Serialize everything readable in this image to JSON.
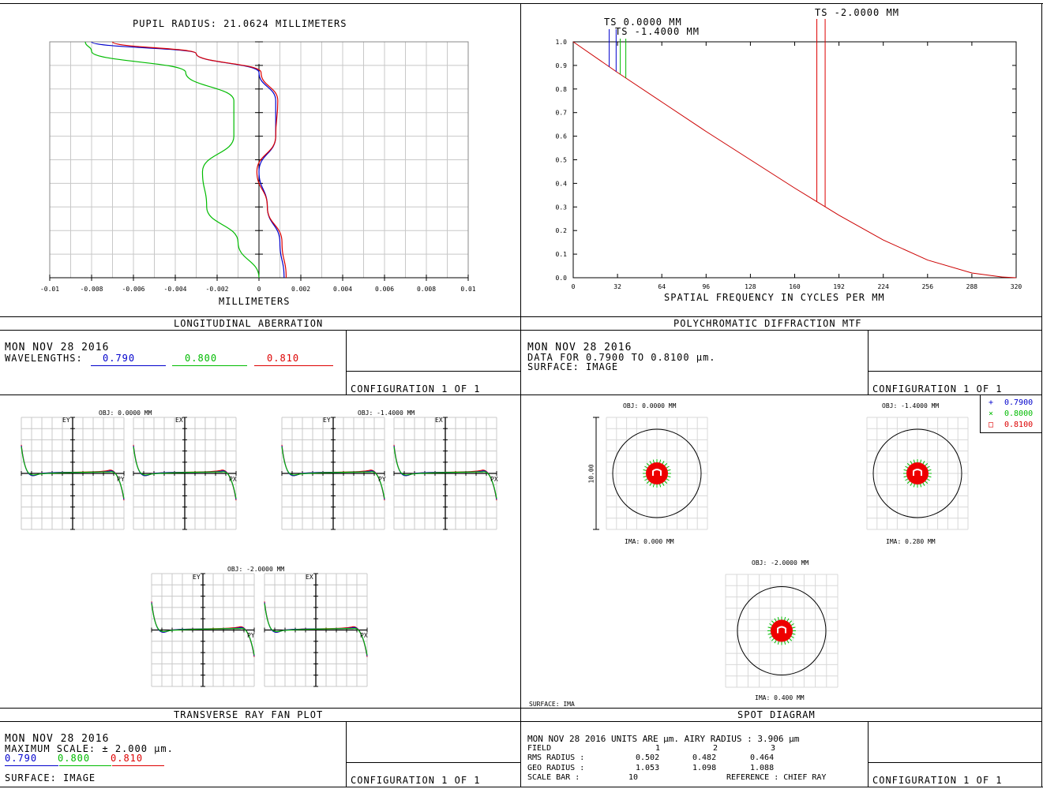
{
  "panels": {
    "lon": {
      "title": "LONGITUDINAL ABERRATION",
      "top_label": "PUPIL RADIUS: 21.0624 MILLIMETERS",
      "xaxis_label": "MILLIMETERS",
      "date": "MON NOV 28 2016",
      "wavelengths_label": "WAVELENGTHS:",
      "wl1": "0.790",
      "wl2": "0.800",
      "wl3": "0.810",
      "config": "CONFIGURATION 1 OF 1"
    },
    "mtf": {
      "title": "POLYCHROMATIC DIFFRACTION MTF",
      "xaxis_label": "SPATIAL FREQUENCY IN CYCLES PER MM",
      "date": "MON NOV 28 2016",
      "data_for": "DATA FOR 0.7900 TO 0.8100 µm.",
      "surface": "SURFACE: IMAGE",
      "config": "CONFIGURATION 1 OF 1",
      "ts1": "TS 0.0000 MM",
      "ts2": "TS -1.4000 MM",
      "ts3": "TS -2.0000 MM"
    },
    "fan": {
      "title": "TRANSVERSE RAY FAN PLOT",
      "obj1": "OBJ: 0.0000 MM",
      "obj2": "OBJ: -1.4000 MM",
      "obj3": "OBJ: -2.0000 MM",
      "ey": "EY",
      "ex": "EX",
      "py": "PY",
      "px": "PX",
      "date": "MON NOV 28 2016",
      "max_scale": "MAXIMUM SCALE: ± 2.000 µm.",
      "wl1": "0.790",
      "wl2": "0.800",
      "wl3": "0.810",
      "surface": "SURFACE: IMAGE",
      "config": "CONFIGURATION 1 OF 1"
    },
    "spot": {
      "title": "SPOT DIAGRAM",
      "obj1": "OBJ: 0.0000 MM",
      "obj2": "OBJ: -1.4000 MM",
      "obj3": "OBJ: -2.0000 MM",
      "ima1": "IMA: 0.000 MM",
      "ima2": "IMA: 0.280 MM",
      "ima3": "IMA: 0.400 MM",
      "scale_side": "10.00",
      "surface_small": "SURFACE: IMA",
      "legend": [
        "0.7900",
        "0.8000",
        "0.8100"
      ],
      "header": "MON NOV 28 2016  UNITS ARE µm.  AIRY RADIUS : 3.906 µm",
      "rows": [
        {
          "label": "FIELD",
          "v1": "1",
          "v2": "2",
          "v3": "3"
        },
        {
          "label": "RMS RADIUS :",
          "v1": "0.502",
          "v2": "0.482",
          "v3": "0.464"
        },
        {
          "label": "GEO RADIUS :",
          "v1": "1.053",
          "v2": "1.098",
          "v3": "1.088"
        },
        {
          "label": "SCALE BAR  :",
          "v1": "10",
          "v2": "REFERENCE  : CHIEF RAY",
          "v3": ""
        }
      ],
      "config": "CONFIGURATION 1 OF 1"
    }
  },
  "colors": {
    "blue": "#0000cc",
    "green": "#00bb00",
    "red": "#dd0000",
    "grid": "#c8c8c8",
    "mtf_red": "#cc0000"
  },
  "chart_data": [
    {
      "type": "line",
      "title": "PUPIL RADIUS: 21.0624 MILLIMETERS",
      "xlabel": "MILLIMETERS",
      "xlim": [
        -0.01,
        0.01
      ],
      "ylim": [
        0,
        1
      ],
      "x_ticks": [
        "-0.01",
        "-0.008",
        "-0.006",
        "-0.004",
        "-0.002",
        "0",
        "0.002",
        "0.004",
        "0.006",
        "0.008",
        "0.01"
      ],
      "grid": true,
      "series": [
        {
          "name": "0.790",
          "color": "blue",
          "x": [
            0.0012,
            0.001,
            0.0004,
            0.0,
            0.0008,
            0.0008,
            0.0,
            -0.003,
            -0.008
          ],
          "y": [
            0.0,
            0.15,
            0.3,
            0.45,
            0.6,
            0.75,
            0.87,
            0.95,
            1.0
          ]
        },
        {
          "name": "0.800",
          "color": "green",
          "x": [
            0.0,
            -0.001,
            -0.0025,
            -0.0027,
            -0.0012,
            -0.0012,
            -0.0035,
            -0.008,
            -0.0083
          ],
          "y": [
            0.0,
            0.15,
            0.3,
            0.45,
            0.6,
            0.75,
            0.87,
            0.96,
            1.0
          ]
        },
        {
          "name": "0.810",
          "color": "red",
          "x": [
            0.0013,
            0.0011,
            0.0004,
            -0.0001,
            0.0008,
            0.0009,
            0.0001,
            -0.003,
            -0.007
          ],
          "y": [
            0.0,
            0.15,
            0.3,
            0.45,
            0.6,
            0.75,
            0.87,
            0.95,
            1.0
          ]
        }
      ]
    },
    {
      "type": "line",
      "title": "POLYCHROMATIC DIFFRACTION MTF",
      "xlabel": "SPATIAL FREQUENCY IN CYCLES PER MM",
      "xlim": [
        0,
        320
      ],
      "ylim": [
        0,
        1
      ],
      "x_ticks": [
        "0",
        "32",
        "64",
        "96",
        "128",
        "160",
        "192",
        "224",
        "256",
        "288",
        "320"
      ],
      "y_ticks": [
        "0.0",
        "0.1",
        "0.2",
        "0.3",
        "0.4",
        "0.5",
        "0.6",
        "0.7",
        "0.8",
        "0.9",
        "1.0"
      ],
      "grid": false,
      "series": [
        {
          "name": "MTF",
          "x": [
            0,
            32,
            64,
            96,
            128,
            160,
            192,
            224,
            256,
            288,
            310,
            320
          ],
          "y": [
            1.0,
            0.87,
            0.745,
            0.62,
            0.5,
            0.38,
            0.265,
            0.16,
            0.075,
            0.02,
            0.003,
            0.0
          ]
        }
      ],
      "markers": [
        {
          "label": "TS 0.0000 MM",
          "x": [
            26,
            31
          ]
        },
        {
          "label": "TS -1.4000 MM",
          "x": [
            34,
            38
          ]
        },
        {
          "label": "TS -2.0000 MM",
          "x": [
            176,
            182
          ]
        }
      ]
    }
  ]
}
